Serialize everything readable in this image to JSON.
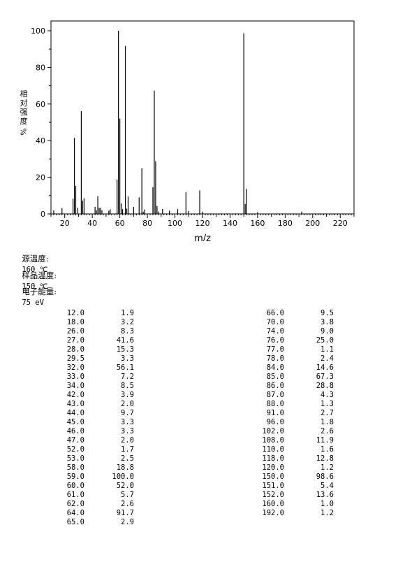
{
  "chart_data": {
    "type": "bar",
    "xlabel": "m/z",
    "ylabel": "相对强度 %",
    "xlim": [
      10,
      230
    ],
    "ylim": [
      0,
      100
    ],
    "xticks": [
      20,
      40,
      60,
      80,
      100,
      120,
      140,
      160,
      180,
      200,
      220
    ],
    "yticks": [
      0,
      20,
      40,
      60,
      80,
      100
    ],
    "grid": false,
    "peaks": [
      {
        "mz": 12.0,
        "abundance": 1.9
      },
      {
        "mz": 18.0,
        "abundance": 3.2
      },
      {
        "mz": 26.0,
        "abundance": 8.3
      },
      {
        "mz": 27.0,
        "abundance": 41.6
      },
      {
        "mz": 28.0,
        "abundance": 15.3
      },
      {
        "mz": 29.5,
        "abundance": 3.3
      },
      {
        "mz": 32.0,
        "abundance": 56.1
      },
      {
        "mz": 33.0,
        "abundance": 7.2
      },
      {
        "mz": 34.0,
        "abundance": 8.5
      },
      {
        "mz": 42.0,
        "abundance": 3.9
      },
      {
        "mz": 43.0,
        "abundance": 2.0
      },
      {
        "mz": 44.0,
        "abundance": 9.7
      },
      {
        "mz": 45.0,
        "abundance": 3.3
      },
      {
        "mz": 46.0,
        "abundance": 3.3
      },
      {
        "mz": 47.0,
        "abundance": 2.0
      },
      {
        "mz": 52.0,
        "abundance": 1.7
      },
      {
        "mz": 53.0,
        "abundance": 2.5
      },
      {
        "mz": 58.0,
        "abundance": 18.8
      },
      {
        "mz": 59.0,
        "abundance": 100.0
      },
      {
        "mz": 60.0,
        "abundance": 52.0
      },
      {
        "mz": 61.0,
        "abundance": 5.7
      },
      {
        "mz": 62.0,
        "abundance": 2.6
      },
      {
        "mz": 64.0,
        "abundance": 91.7
      },
      {
        "mz": 65.0,
        "abundance": 2.9
      },
      {
        "mz": 66.0,
        "abundance": 9.5
      },
      {
        "mz": 70.0,
        "abundance": 3.8
      },
      {
        "mz": 74.0,
        "abundance": 9.0
      },
      {
        "mz": 76.0,
        "abundance": 25.0
      },
      {
        "mz": 77.0,
        "abundance": 1.1
      },
      {
        "mz": 78.0,
        "abundance": 2.4
      },
      {
        "mz": 84.0,
        "abundance": 14.6
      },
      {
        "mz": 85.0,
        "abundance": 67.3
      },
      {
        "mz": 86.0,
        "abundance": 28.8
      },
      {
        "mz": 87.0,
        "abundance": 4.3
      },
      {
        "mz": 88.0,
        "abundance": 1.3
      },
      {
        "mz": 91.0,
        "abundance": 2.7
      },
      {
        "mz": 96.0,
        "abundance": 1.8
      },
      {
        "mz": 102.0,
        "abundance": 2.6
      },
      {
        "mz": 108.0,
        "abundance": 11.9
      },
      {
        "mz": 110.0,
        "abundance": 1.6
      },
      {
        "mz": 118.0,
        "abundance": 12.8
      },
      {
        "mz": 120.0,
        "abundance": 1.2
      },
      {
        "mz": 150.0,
        "abundance": 98.6
      },
      {
        "mz": 151.0,
        "abundance": 5.4
      },
      {
        "mz": 152.0,
        "abundance": 13.6
      },
      {
        "mz": 160.0,
        "abundance": 1.0
      },
      {
        "mz": 192.0,
        "abundance": 1.2
      }
    ]
  },
  "conditions": {
    "source_temp_label": "源温度:",
    "source_temp_value": "160 ℃",
    "sample_temp_label": "样品温度:",
    "sample_temp_value": "150 ℃",
    "electron_energy_label": "电子能量:",
    "electron_energy_value": "75 eV"
  },
  "table_left": [
    {
      "mz": "12.0",
      "ab": "1.9"
    },
    {
      "mz": "18.0",
      "ab": "3.2"
    },
    {
      "mz": "26.0",
      "ab": "8.3"
    },
    {
      "mz": "27.0",
      "ab": "41.6"
    },
    {
      "mz": "28.0",
      "ab": "15.3"
    },
    {
      "mz": "29.5",
      "ab": "3.3"
    },
    {
      "mz": "32.0",
      "ab": "56.1"
    },
    {
      "mz": "33.0",
      "ab": "7.2"
    },
    {
      "mz": "34.0",
      "ab": "8.5"
    },
    {
      "mz": "42.0",
      "ab": "3.9"
    },
    {
      "mz": "43.0",
      "ab": "2.0"
    },
    {
      "mz": "44.0",
      "ab": "9.7"
    },
    {
      "mz": "45.0",
      "ab": "3.3"
    },
    {
      "mz": "46.0",
      "ab": "3.3"
    },
    {
      "mz": "47.0",
      "ab": "2.0"
    },
    {
      "mz": "52.0",
      "ab": "1.7"
    },
    {
      "mz": "53.0",
      "ab": "2.5"
    },
    {
      "mz": "58.0",
      "ab": "18.8"
    },
    {
      "mz": "59.0",
      "ab": "100.0"
    },
    {
      "mz": "60.0",
      "ab": "52.0"
    },
    {
      "mz": "61.0",
      "ab": "5.7"
    },
    {
      "mz": "62.0",
      "ab": "2.6"
    },
    {
      "mz": "64.0",
      "ab": "91.7"
    },
    {
      "mz": "65.0",
      "ab": "2.9"
    }
  ],
  "table_right": [
    {
      "mz": "66.0",
      "ab": "9.5"
    },
    {
      "mz": "70.0",
      "ab": "3.8"
    },
    {
      "mz": "74.0",
      "ab": "9.0"
    },
    {
      "mz": "76.0",
      "ab": "25.0"
    },
    {
      "mz": "77.0",
      "ab": "1.1"
    },
    {
      "mz": "78.0",
      "ab": "2.4"
    },
    {
      "mz": "84.0",
      "ab": "14.6"
    },
    {
      "mz": "85.0",
      "ab": "67.3"
    },
    {
      "mz": "86.0",
      "ab": "28.8"
    },
    {
      "mz": "87.0",
      "ab": "4.3"
    },
    {
      "mz": "88.0",
      "ab": "1.3"
    },
    {
      "mz": "91.0",
      "ab": "2.7"
    },
    {
      "mz": "96.0",
      "ab": "1.8"
    },
    {
      "mz": "102.0",
      "ab": "2.6"
    },
    {
      "mz": "108.0",
      "ab": "11.9"
    },
    {
      "mz": "110.0",
      "ab": "1.6"
    },
    {
      "mz": "118.0",
      "ab": "12.8"
    },
    {
      "mz": "120.0",
      "ab": "1.2"
    },
    {
      "mz": "150.0",
      "ab": "98.6"
    },
    {
      "mz": "151.0",
      "ab": "5.4"
    },
    {
      "mz": "152.0",
      "ab": "13.6"
    },
    {
      "mz": "160.0",
      "ab": "1.0"
    },
    {
      "mz": "192.0",
      "ab": "1.2"
    }
  ]
}
